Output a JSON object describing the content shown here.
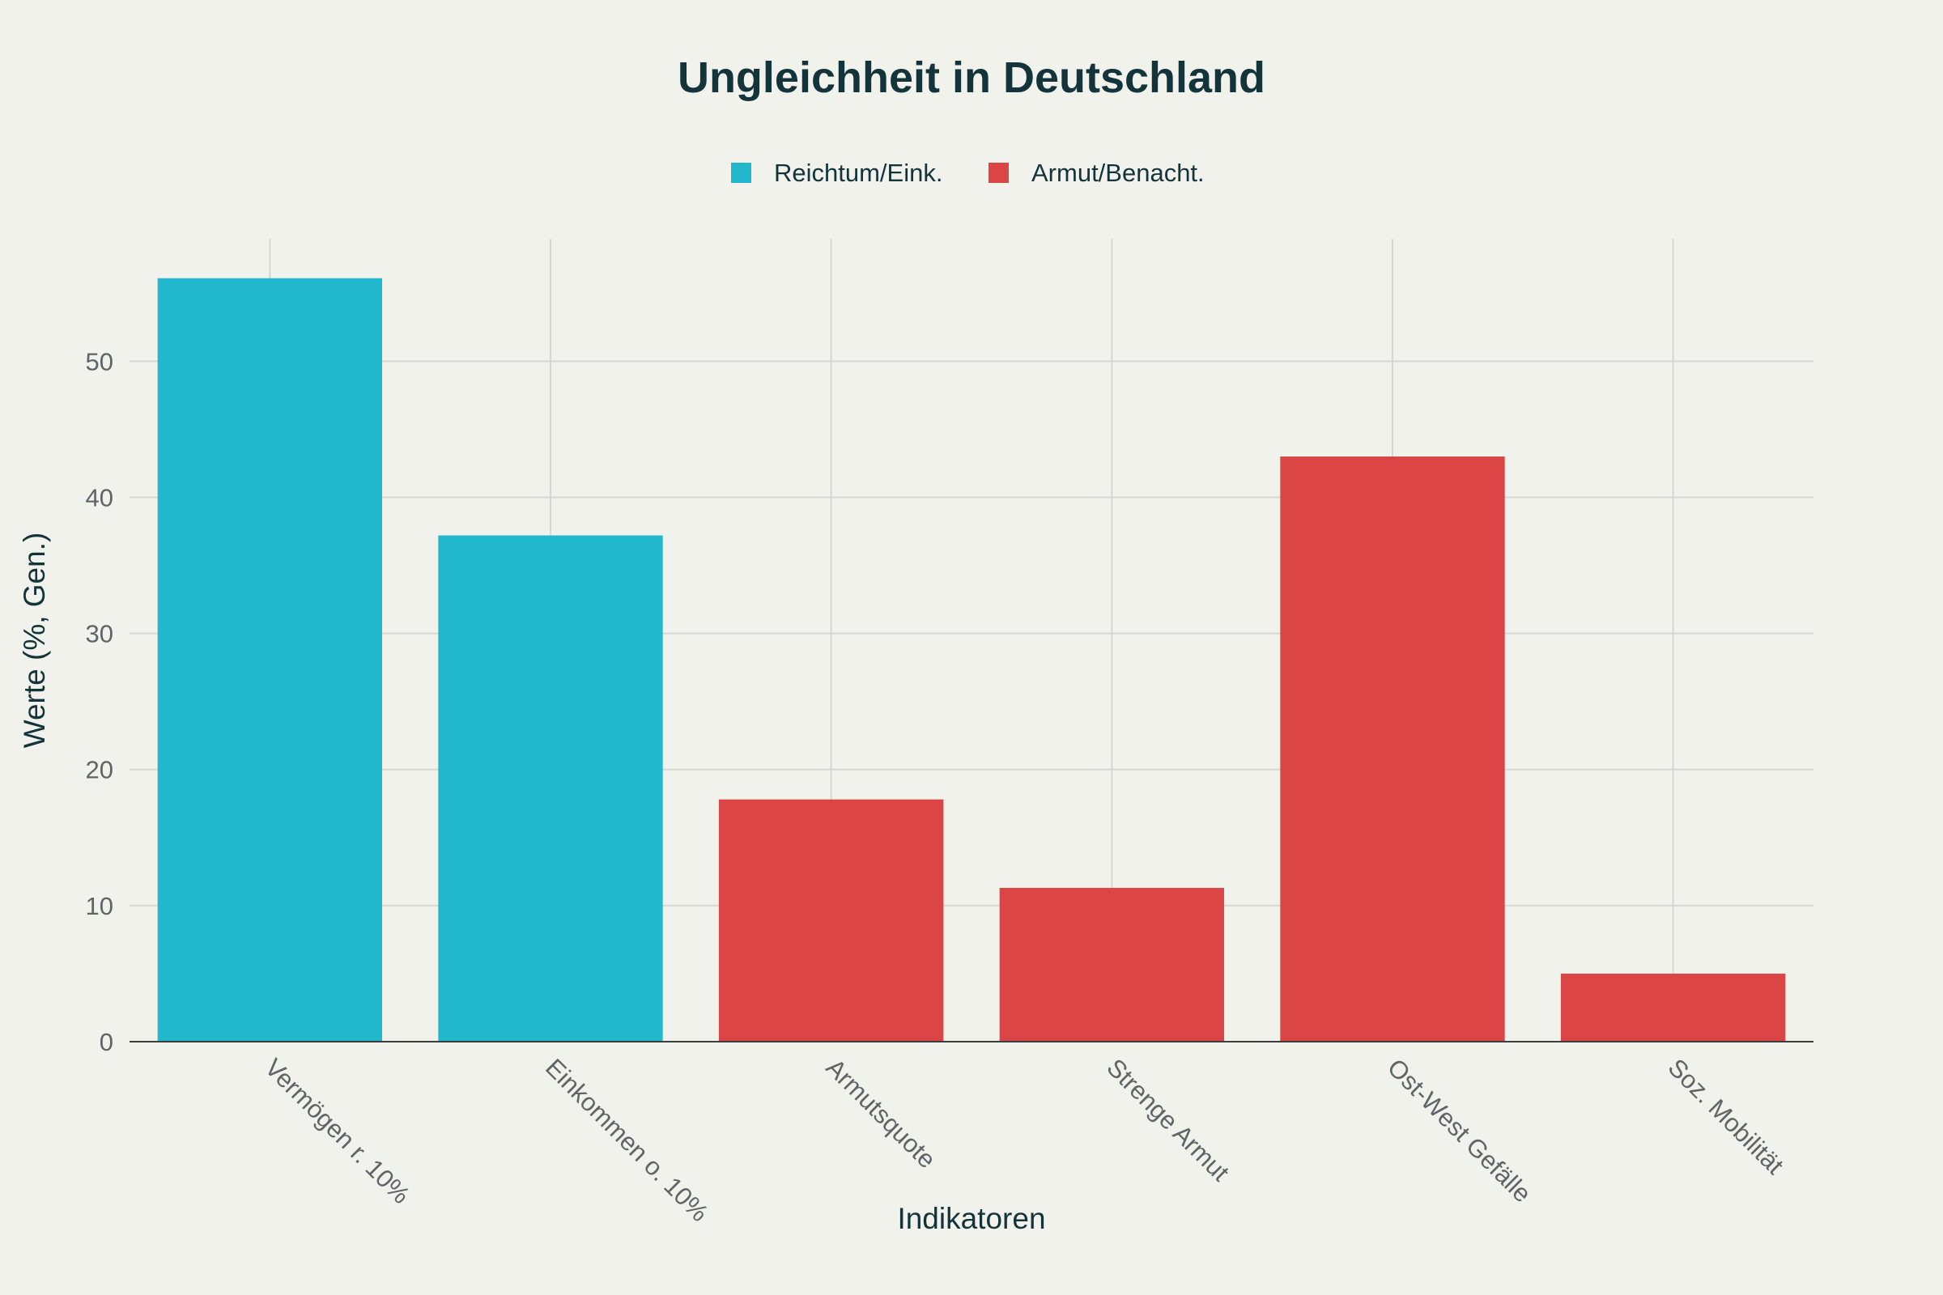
{
  "chart_data": {
    "type": "bar",
    "title": "Ungleichheit in Deutschland",
    "xlabel": "Indikatoren",
    "ylabel": "Werte (%, Gen.)",
    "categories": [
      "Vermögen r. 10%",
      "Einkommen o. 10%",
      "Armutsquote",
      "Strenge Armut",
      "Ost-West Gefälle",
      "Soz. Mobilität"
    ],
    "values": [
      56.1,
      37.2,
      17.8,
      11.3,
      43,
      5
    ],
    "groups": [
      "Reichtum/Eink.",
      "Reichtum/Eink.",
      "Armut/Benacht.",
      "Armut/Benacht.",
      "Armut/Benacht.",
      "Armut/Benacht."
    ],
    "legend": [
      {
        "name": "Reichtum/Eink.",
        "color": "#21b7cc"
      },
      {
        "name": "Armut/Benacht.",
        "color": "#db4545"
      }
    ],
    "legend_position": "top-center",
    "ylim": [
      0,
      59
    ],
    "yticks": [
      0,
      10,
      20,
      30,
      40,
      50
    ],
    "grid": true
  }
}
